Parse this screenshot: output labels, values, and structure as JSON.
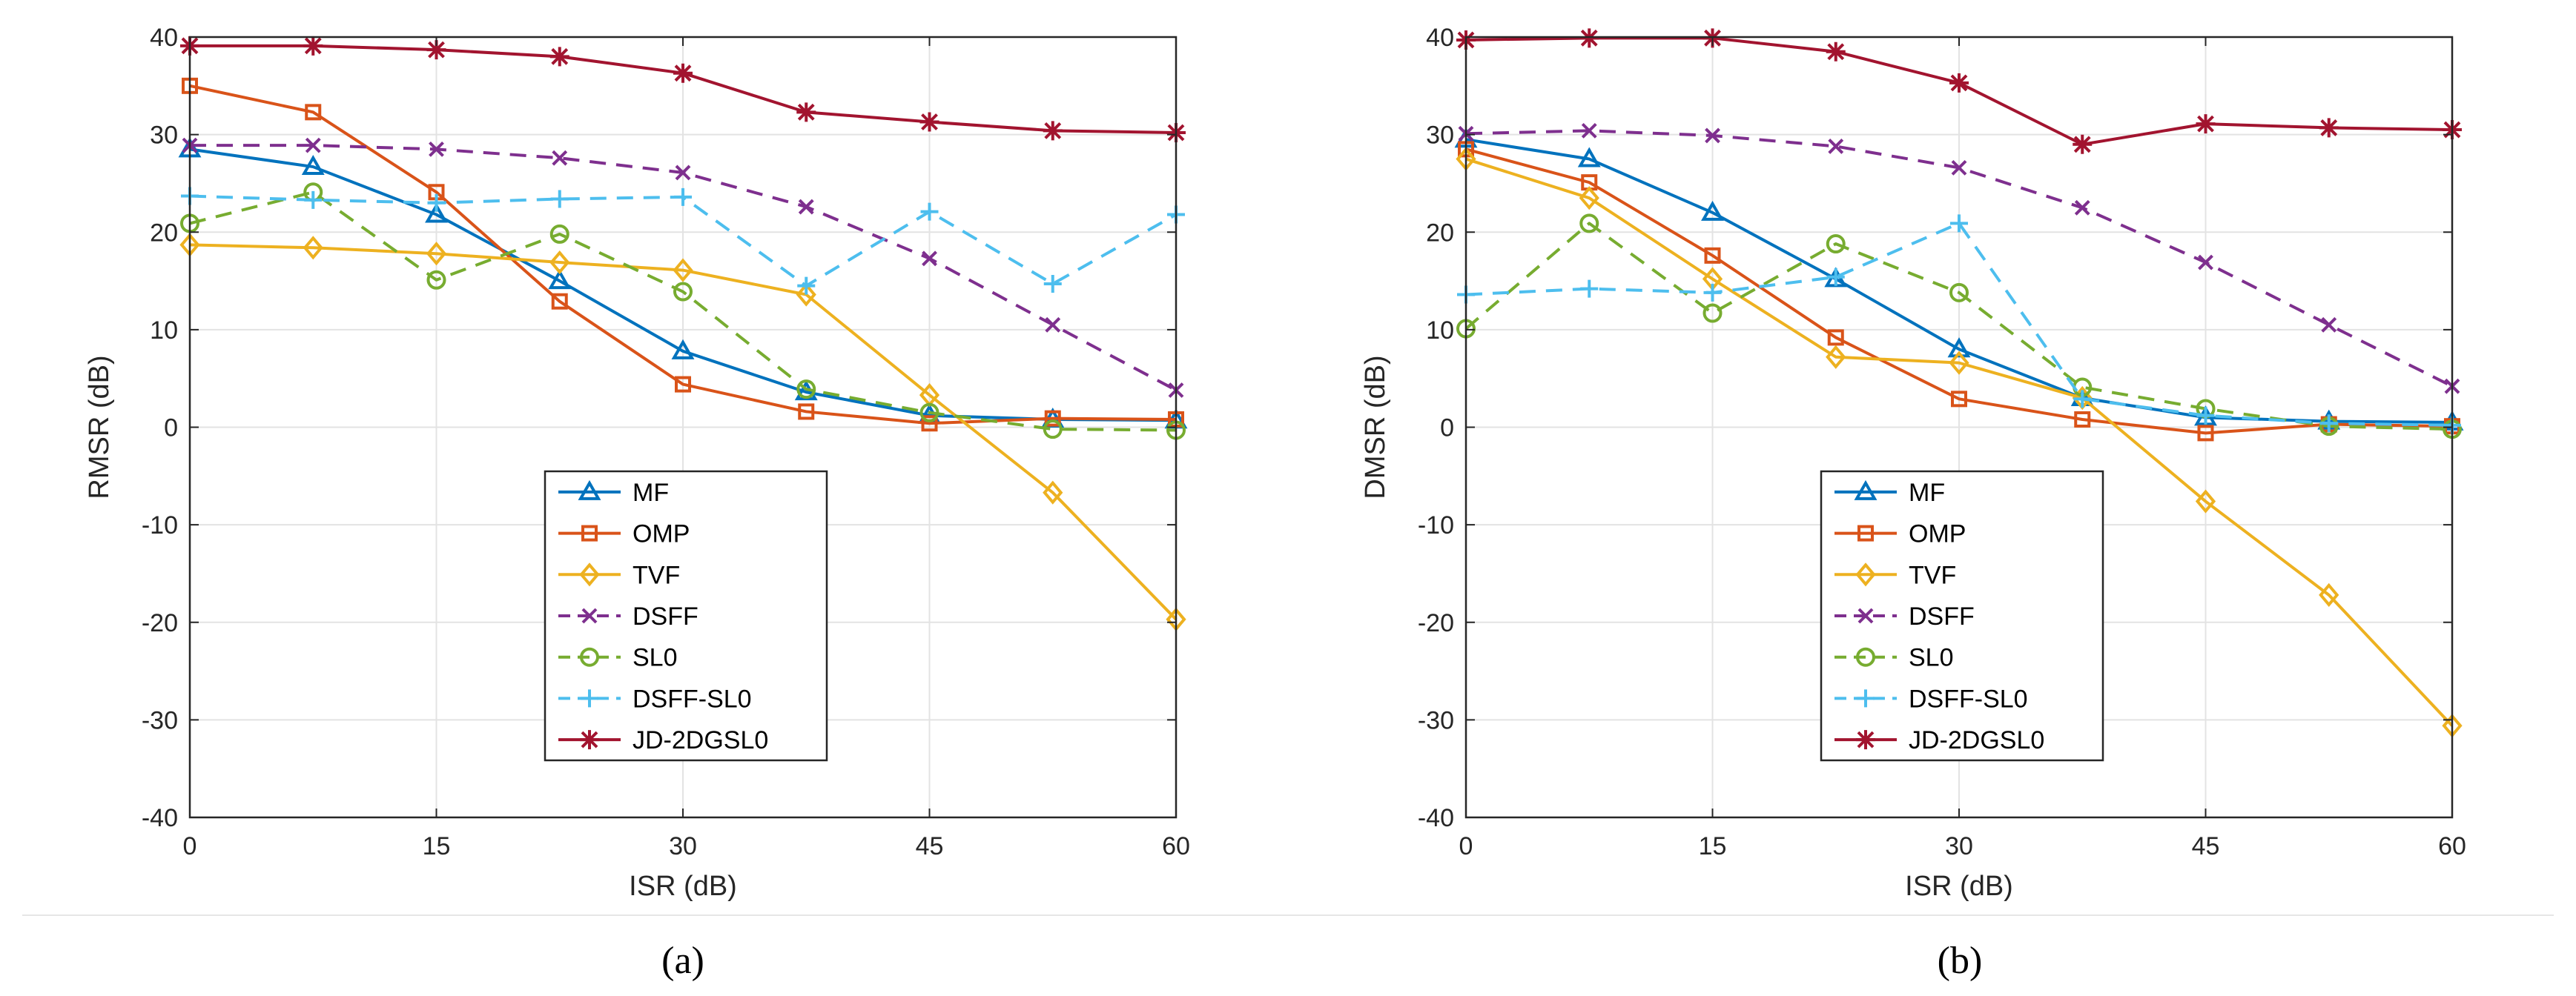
{
  "chart_data": [
    {
      "type": "line",
      "caption": "(a)",
      "xlabel": "ISR (dB)",
      "ylabel": "RMSR (dB)",
      "xlim": [
        0,
        60
      ],
      "ylim": [
        -40,
        40
      ],
      "xticks": [
        0,
        15,
        30,
        45,
        60
      ],
      "yticks": [
        -40,
        -30,
        -20,
        -10,
        0,
        10,
        20,
        30,
        40
      ],
      "grid": true,
      "legend_position": "bottom-center",
      "x": [
        0,
        7.5,
        15,
        22.5,
        30,
        37.5,
        45,
        52.5,
        60
      ],
      "series": [
        {
          "name": "MF",
          "color": "#0072BD",
          "dash": "solid",
          "marker": "triangle",
          "values": [
            28.5,
            26.7,
            21.8,
            15,
            7.8,
            3.6,
            1.2,
            0.8,
            0.7
          ]
        },
        {
          "name": "OMP",
          "color": "#D95319",
          "dash": "solid",
          "marker": "square",
          "values": [
            35,
            32.3,
            24.1,
            12.9,
            4.4,
            1.6,
            0.4,
            0.9,
            0.8
          ]
        },
        {
          "name": "TVF",
          "color": "#EDB120",
          "dash": "solid",
          "marker": "diamond",
          "values": [
            18.7,
            18.4,
            17.8,
            16.9,
            16.1,
            13.6,
            3.3,
            -6.7,
            -19.7
          ]
        },
        {
          "name": "DSFF",
          "color": "#7E2F8E",
          "dash": "dashed",
          "marker": "x",
          "values": [
            28.9,
            28.9,
            28.5,
            27.6,
            26.1,
            22.6,
            17.3,
            10.5,
            3.8
          ]
        },
        {
          "name": "SL0",
          "color": "#77AC30",
          "dash": "dashed",
          "marker": "circle",
          "values": [
            20.9,
            24.1,
            15.1,
            19.8,
            13.9,
            3.9,
            1.5,
            -0.2,
            -0.3
          ]
        },
        {
          "name": "DSFF-SL0",
          "color": "#4DBEEE",
          "dash": "dashed",
          "marker": "plus",
          "values": [
            23.7,
            23.3,
            23,
            23.4,
            23.6,
            14.5,
            22.1,
            14.7,
            21.8
          ]
        },
        {
          "name": "JD-2DGSL0",
          "color": "#A2142F",
          "dash": "solid",
          "marker": "star",
          "values": [
            39.1,
            39.1,
            38.7,
            38.0,
            36.3,
            32.3,
            31.3,
            30.4,
            30.2
          ]
        }
      ]
    },
    {
      "type": "line",
      "caption": "(b)",
      "xlabel": "ISR (dB)",
      "ylabel": "DMSR (dB)",
      "xlim": [
        0,
        60
      ],
      "ylim": [
        -40,
        40
      ],
      "xticks": [
        0,
        15,
        30,
        45,
        60
      ],
      "yticks": [
        -40,
        -30,
        -20,
        -10,
        0,
        10,
        20,
        30,
        40
      ],
      "grid": true,
      "legend_position": "bottom-center",
      "x": [
        0,
        7.5,
        15,
        22.5,
        30,
        37.5,
        45,
        52.5,
        60
      ],
      "series": [
        {
          "name": "MF",
          "color": "#0072BD",
          "dash": "solid",
          "marker": "triangle",
          "values": [
            29.5,
            27.5,
            22,
            15.2,
            8,
            3,
            1,
            0.6,
            0.5
          ]
        },
        {
          "name": "OMP",
          "color": "#D95319",
          "dash": "solid",
          "marker": "square",
          "values": [
            28.5,
            25.1,
            17.6,
            9.2,
            2.9,
            0.8,
            -0.6,
            0.3,
            0.1
          ]
        },
        {
          "name": "TVF",
          "color": "#EDB120",
          "dash": "solid",
          "marker": "diamond",
          "values": [
            27.5,
            23.5,
            15.2,
            7.2,
            6.6,
            3,
            -7.6,
            -17.2,
            -30.6
          ]
        },
        {
          "name": "DSFF",
          "color": "#7E2F8E",
          "dash": "dashed",
          "marker": "x",
          "values": [
            30.1,
            30.4,
            29.9,
            28.8,
            26.6,
            22.5,
            16.9,
            10.5,
            4.2
          ]
        },
        {
          "name": "SL0",
          "color": "#77AC30",
          "dash": "dashed",
          "marker": "circle",
          "values": [
            10.1,
            20.9,
            11.7,
            18.8,
            13.8,
            4.1,
            1.9,
            0.1,
            -0.2
          ]
        },
        {
          "name": "DSFF-SL0",
          "color": "#4DBEEE",
          "dash": "dashed",
          "marker": "plus",
          "values": [
            13.6,
            14.2,
            13.8,
            15.4,
            20.9,
            2.9,
            1.2,
            0.4,
            0.2
          ]
        },
        {
          "name": "JD-2DGSL0",
          "color": "#A2142F",
          "dash": "solid",
          "marker": "star",
          "values": [
            39.7,
            39.9,
            39.9,
            38.5,
            35.3,
            29,
            31.1,
            30.7,
            30.5
          ]
        }
      ]
    }
  ]
}
